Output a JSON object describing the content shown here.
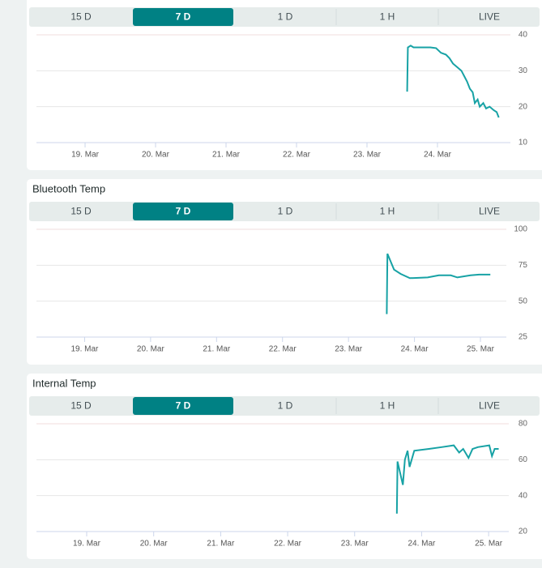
{
  "chart_data": [
    {
      "type": "line",
      "tabs": [
        "15 D",
        "7 D",
        "1 D",
        "1 H",
        "LIVE"
      ],
      "active_tab": 1,
      "color": "#17a2a5",
      "grid": true,
      "x": [
        23.57,
        23.58,
        23.62,
        23.66,
        23.7,
        23.8,
        23.9,
        23.98,
        24.05,
        24.12,
        24.17,
        24.22,
        24.28,
        24.34,
        24.38,
        24.42,
        24.46,
        24.5,
        24.53,
        24.57,
        24.6,
        24.65,
        24.69,
        24.74,
        24.8,
        24.84,
        24.87
      ],
      "values": [
        24.2,
        36.5,
        37,
        36.5,
        36.5,
        36.5,
        36.5,
        36.3,
        35,
        34.5,
        33.5,
        32,
        31,
        30,
        28.5,
        27,
        25,
        24,
        21,
        22,
        20,
        21,
        19.5,
        20,
        19,
        18.5,
        17
      ],
      "xlim": [
        18.31,
        24.92
      ],
      "xticks": [
        {
          "value": 19,
          "label": "19. Mar"
        },
        {
          "value": 20,
          "label": "20. Mar"
        },
        {
          "value": 21,
          "label": "21. Mar"
        },
        {
          "value": 22,
          "label": "22. Mar"
        },
        {
          "value": 23,
          "label": "23. Mar"
        },
        {
          "value": 24,
          "label": "24. Mar"
        }
      ],
      "ylim": [
        10,
        40
      ],
      "yticks": [
        10,
        20,
        30,
        40
      ]
    },
    {
      "type": "line",
      "title": "Bluetooth Temp",
      "tabs": [
        "15 D",
        "7 D",
        "1 D",
        "1 H",
        "LIVE"
      ],
      "active_tab": 1,
      "color": "#17a2a5",
      "grid": true,
      "x": [
        23.58,
        23.59,
        23.69,
        23.79,
        23.93,
        24.2,
        24.37,
        24.55,
        24.65,
        24.85,
        24.98,
        25.15
      ],
      "values": [
        41,
        83,
        72,
        69,
        66,
        66.5,
        68,
        68,
        66.5,
        68,
        68.5,
        68.5
      ],
      "xlim": [
        18.27,
        25.27
      ],
      "xticks": [
        {
          "value": 19,
          "label": "19. Mar"
        },
        {
          "value": 20,
          "label": "20. Mar"
        },
        {
          "value": 21,
          "label": "21. Mar"
        },
        {
          "value": 22,
          "label": "22. Mar"
        },
        {
          "value": 23,
          "label": "23. Mar"
        },
        {
          "value": 24,
          "label": "24. Mar"
        },
        {
          "value": 25,
          "label": "25. Mar"
        }
      ],
      "ylim": [
        25,
        100
      ],
      "yticks": [
        25,
        50,
        75,
        100
      ]
    },
    {
      "type": "line",
      "title": "Internal Temp",
      "tabs": [
        "15 D",
        "7 D",
        "1 D",
        "1 H",
        "LIVE"
      ],
      "active_tab": 1,
      "color": "#17a2a5",
      "grid": true,
      "x": [
        23.63,
        23.64,
        23.72,
        23.75,
        23.79,
        23.82,
        23.89,
        24.11,
        24.3,
        24.48,
        24.56,
        24.62,
        24.7,
        24.76,
        24.84,
        25.01,
        25.05,
        25.09,
        25.15
      ],
      "values": [
        30,
        59,
        46,
        60,
        65,
        56,
        65,
        66,
        67,
        68,
        64,
        66,
        61,
        66,
        67,
        68,
        62,
        66,
        66
      ],
      "xlim": [
        18.25,
        25.18
      ],
      "xticks": [
        {
          "value": 19,
          "label": "19. Mar"
        },
        {
          "value": 20,
          "label": "20. Mar"
        },
        {
          "value": 21,
          "label": "21. Mar"
        },
        {
          "value": 22,
          "label": "22. Mar"
        },
        {
          "value": 23,
          "label": "23. Mar"
        },
        {
          "value": 24,
          "label": "24. Mar"
        },
        {
          "value": 25,
          "label": "25. Mar"
        }
      ],
      "ylim": [
        20,
        80
      ],
      "yticks": [
        20,
        40,
        60,
        80
      ]
    }
  ]
}
